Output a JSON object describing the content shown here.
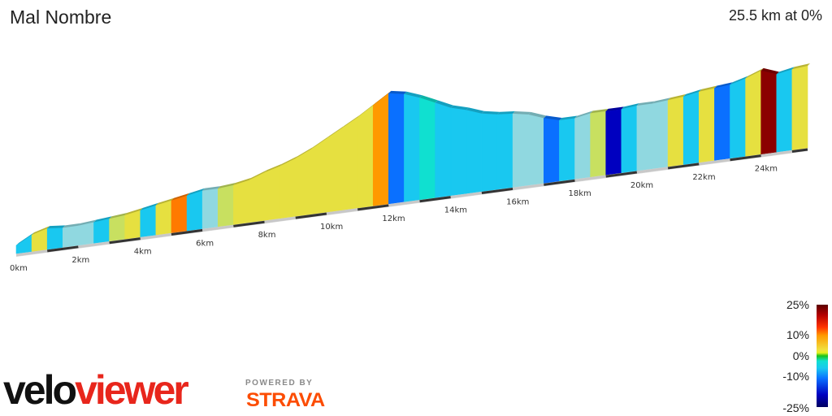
{
  "header": {
    "title": "Mal Nombre",
    "summary": "25.5 km at 0%"
  },
  "axis": {
    "tick_labels": [
      "0km",
      "2km",
      "4km",
      "6km",
      "8km",
      "10km",
      "12km",
      "14km",
      "16km",
      "18km",
      "20km",
      "22km",
      "24km"
    ]
  },
  "legend": {
    "labels": [
      "25%",
      "10%",
      "0%",
      "-10%",
      "-25%"
    ],
    "gradient_colors": [
      "#5c0000",
      "#b30000",
      "#ff3300",
      "#ff9900",
      "#f0e040",
      "#19c219",
      "#10e0d0",
      "#19c8f0",
      "#0a70ff",
      "#0000c0",
      "#000060"
    ]
  },
  "branding": {
    "logo_part1": "velo",
    "logo_part2": "viewer",
    "powered_by": "POWERED BY",
    "strava": "STRAVA",
    "logo_colors": {
      "velo": "#111111",
      "viewer": "#e8261c",
      "strava": "#fc4c02"
    }
  },
  "chart_data": {
    "type": "area",
    "x_unit": "km",
    "xlim": [
      0,
      25.5
    ],
    "distance_km": [
      0,
      0.5,
      1,
      1.5,
      2,
      2.5,
      3,
      3.5,
      4,
      4.5,
      5,
      5.5,
      6,
      6.5,
      7,
      7.5,
      8,
      8.5,
      9,
      9.5,
      10,
      10.5,
      11,
      11.5,
      12,
      12.5,
      13,
      13.5,
      14,
      14.5,
      15,
      15.5,
      16,
      16.5,
      17,
      17.5,
      18,
      18.5,
      19,
      19.5,
      20,
      20.5,
      21,
      21.5,
      22,
      22.5,
      23,
      23.5,
      24,
      24.5,
      25,
      25.5
    ],
    "relative_elevation": [
      0,
      6,
      9,
      8,
      8,
      9,
      10,
      11,
      13,
      15,
      17,
      19,
      21,
      21,
      22,
      24,
      28,
      31,
      35,
      40,
      46,
      52,
      58,
      65,
      72,
      70,
      66,
      61,
      56,
      53,
      49,
      47,
      46,
      44,
      40,
      37,
      37,
      39,
      39,
      39,
      40,
      40,
      41,
      42,
      44,
      45,
      46,
      49,
      53,
      49,
      51,
      52
    ],
    "gradient_colors": [
      "#19c8f0",
      "#e6e040",
      "#19c8f0",
      "#90d8e0",
      "#90d8e0",
      "#19c8f0",
      "#c8e060",
      "#e6e040",
      "#19c8f0",
      "#e6e040",
      "#ff7a00",
      "#19c8f0",
      "#90d8e0",
      "#c8e060",
      "#e6e040",
      "#e6e040",
      "#e6e040",
      "#e6e040",
      "#e6e040",
      "#e6e040",
      "#e6e040",
      "#e6e040",
      "#e6e040",
      "#ff9900",
      "#0a70ff",
      "#19c8f0",
      "#10e0d0",
      "#19c8f0",
      "#19c8f0",
      "#19c8f0",
      "#19c8f0",
      "#19c8f0",
      "#90d8e0",
      "#90d8e0",
      "#0a70ff",
      "#19c8f0",
      "#90d8e0",
      "#c8e060",
      "#0000c0",
      "#19c8f0",
      "#90d8e0",
      "#90d8e0",
      "#e6e040",
      "#19c8f0",
      "#e6e040",
      "#0a70ff",
      "#19c8f0",
      "#e6e040",
      "#8b0000",
      "#19c8f0",
      "#e6e040"
    ]
  }
}
